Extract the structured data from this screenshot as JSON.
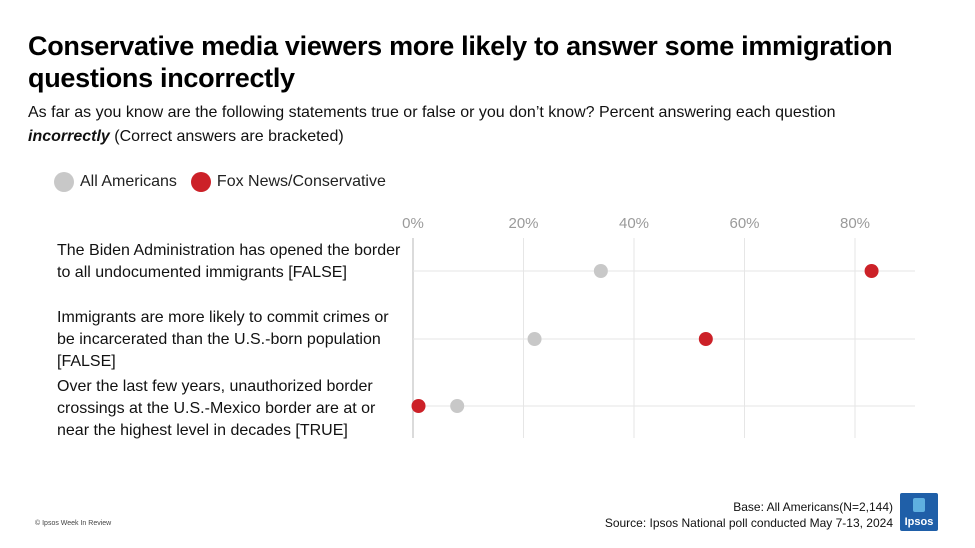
{
  "title": "Conservative media viewers more likely to answer some immigration questions incorrectly",
  "subtitle": {
    "part1": "As far as you know are the following statements true or false or you don’t know? Percent answering each question ",
    "emphasis": "incorrectly",
    "part2": " (Correct answers are bracketed)"
  },
  "colors": {
    "all_americans": "#c8c8c8",
    "fox_conservative": "#cc2128",
    "grid": "#e6e6e6",
    "axis_text": "#9a9a9a"
  },
  "chart_data": {
    "type": "dot",
    "title": "Conservative media viewers more likely to answer some immigration questions incorrectly",
    "xlim": [
      0,
      90
    ],
    "xticks": [
      0,
      20,
      40,
      60,
      80
    ],
    "tick_labels": [
      "0%",
      "20%",
      "40%",
      "60%",
      "80%"
    ],
    "legend_position": "top-left",
    "categories": [
      "The Biden Administration has opened the border to all undocumented immigrants [FALSE]",
      "Immigrants are more likely to commit crimes or be incarcerated than the U.S.-born population [FALSE]",
      "Over the last few years, unauthorized border crossings at the U.S.-Mexico border are at or near the highest level in decades [TRUE]"
    ],
    "series": [
      {
        "name": "All Americans",
        "values": [
          34,
          22,
          8
        ]
      },
      {
        "name": "Fox News/Conservative",
        "values": [
          83,
          53,
          1
        ]
      }
    ]
  },
  "footer": {
    "base": "Base: All Americans(N=2,144)",
    "source": "Source: Ipsos National poll conducted May 7-13, 2024",
    "copyright": "© Ipsos Week In Review",
    "logo_text": "Ipsos"
  }
}
